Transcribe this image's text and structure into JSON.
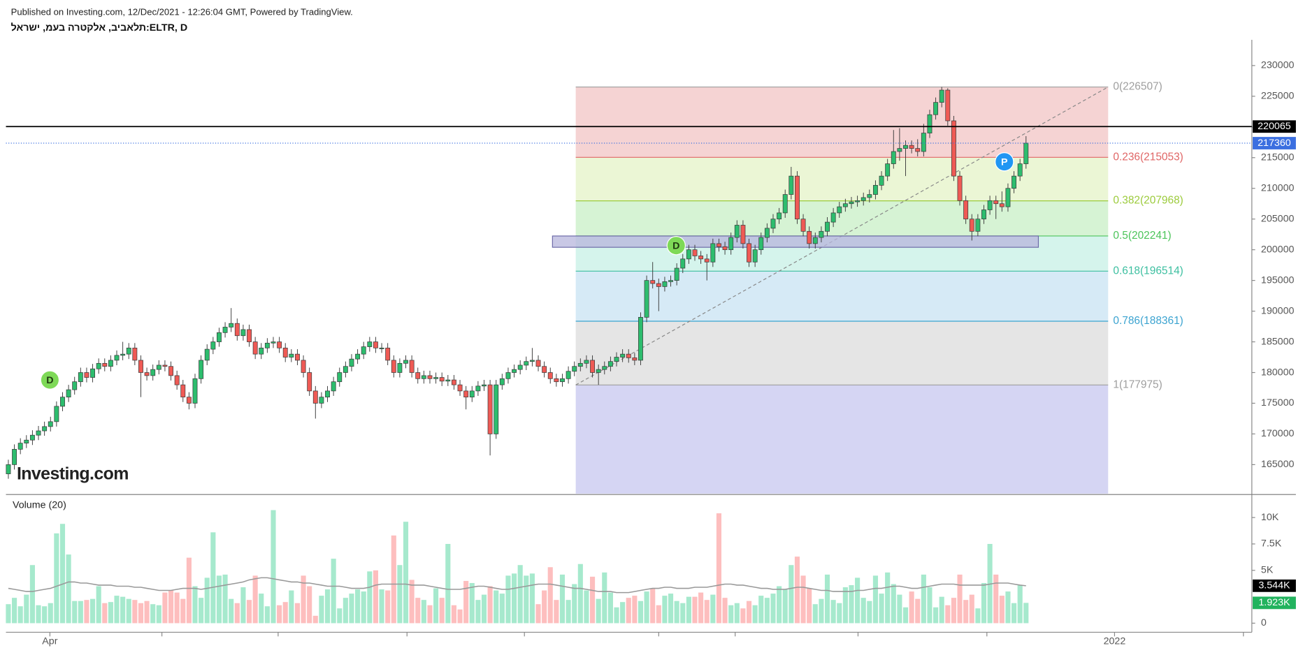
{
  "header": {
    "published": "Published on Investing.com, 12/Dec/2021 - 12:26:04 GMT, Powered by TradingView.",
    "title": "תלאביב, אלקטרה בעמ, ישראל:ELTR, D"
  },
  "chart_data": {
    "type": "candlestick",
    "xlim": [
      -0.4,
      206.5
    ],
    "xticks": [
      {
        "value": 6.9,
        "label": "Apr"
      },
      {
        "value": 183.7,
        "label": "2022"
      }
    ],
    "x_minor_ticks": [
      25.5,
      44.8,
      66.2,
      85.7,
      108,
      120.7,
      141.1,
      162.5,
      205.1
    ],
    "ylim": [
      160270,
      234190
    ],
    "yticks": [
      165000,
      170000,
      175000,
      180000,
      185000,
      190000,
      195000,
      200000,
      205000,
      210000,
      215000,
      220000,
      225000,
      230000
    ],
    "colors": {
      "up": "#2dbd6e",
      "down": "#ef5a55",
      "edge": "#3a3a3a"
    },
    "open": [
      163500,
      165000,
      167500,
      168500,
      169000,
      169800,
      170500,
      171200,
      172000,
      174500,
      176000,
      177200,
      178500,
      180000,
      179200,
      180600,
      181500,
      181000,
      182000,
      182800,
      183000,
      184000,
      182000,
      180000,
      179500,
      180500,
      181200,
      181000,
      179500,
      178000,
      176000,
      175000,
      179000,
      182000,
      183800,
      185000,
      186500,
      187400,
      188000,
      186000,
      187000,
      185000,
      183000,
      184000,
      184800,
      185000,
      184000,
      182500,
      183000,
      182000,
      180000,
      177000,
      175000,
      176000,
      177000,
      178500,
      180000,
      181000,
      182200,
      183000,
      184200,
      185000,
      184000,
      184000,
      182000,
      180000,
      181500,
      182000,
      180000,
      179000,
      179500,
      179000,
      179200,
      178600,
      178800,
      178000,
      177000,
      176000,
      177000,
      177800,
      178000,
      170000,
      178000,
      179000,
      180000,
      180500,
      181200,
      181800,
      182000,
      181000,
      180000,
      179000,
      178500,
      179000,
      180200,
      181000,
      181500,
      182000,
      180000,
      180500,
      181000,
      181800,
      182500,
      183000,
      182400,
      182000,
      189000,
      195000,
      194500,
      194000,
      194800,
      195000,
      197000,
      198500,
      200000,
      199000,
      198500,
      198000,
      201000,
      200500,
      200000,
      202000,
      204000,
      201000,
      198000,
      200000,
      202000,
      203500,
      205000,
      206000,
      209000,
      212000,
      205000,
      203000,
      201000,
      202000,
      203000,
      204500,
      206000,
      207000,
      207500,
      207800,
      208000,
      208500,
      209000,
      210500,
      212000,
      214000,
      216000,
      216500,
      217000,
      216500,
      216000,
      219000,
      222000,
      224000,
      226000,
      221000,
      212000,
      208000,
      205000,
      203000,
      205000,
      206500,
      208000,
      207500,
      207000,
      210000,
      212000,
      214000
    ],
    "high": [
      165800,
      168300,
      169300,
      169800,
      170600,
      171300,
      172000,
      172800,
      175300,
      176800,
      178000,
      179300,
      180800,
      180800,
      181400,
      182300,
      182300,
      182800,
      183600,
      185000,
      184800,
      184800,
      182800,
      180800,
      181300,
      182000,
      182000,
      181800,
      180300,
      178800,
      176800,
      179800,
      182800,
      184600,
      185800,
      187300,
      188200,
      190500,
      188800,
      187800,
      187800,
      185800,
      184800,
      185600,
      185800,
      185800,
      184800,
      183800,
      183800,
      182800,
      180800,
      177800,
      176800,
      177800,
      179300,
      180800,
      181800,
      183000,
      183800,
      185000,
      185800,
      185800,
      184800,
      184800,
      182800,
      182300,
      182800,
      182800,
      180800,
      180300,
      180300,
      180000,
      180000,
      179600,
      179600,
      178800,
      177800,
      177800,
      178600,
      178800,
      178800,
      178800,
      179800,
      180800,
      181300,
      182000,
      182600,
      184000,
      182800,
      181800,
      180800,
      179800,
      179800,
      181000,
      181800,
      182300,
      182800,
      182800,
      181300,
      181800,
      182600,
      183300,
      183800,
      183800,
      183200,
      189800,
      195800,
      198000,
      195300,
      195600,
      195800,
      197800,
      199300,
      200800,
      200800,
      199800,
      199300,
      201800,
      201800,
      201300,
      202800,
      204800,
      204800,
      201800,
      200800,
      202800,
      204300,
      205800,
      206800,
      209800,
      213500,
      212800,
      205800,
      203800,
      202800,
      203800,
      205300,
      206800,
      207800,
      208300,
      208600,
      208800,
      209300,
      209800,
      211300,
      212800,
      214800,
      219500,
      219800,
      217800,
      217800,
      218000,
      220500,
      222800,
      224800,
      226507,
      226300,
      221800,
      212800,
      208800,
      205800,
      205800,
      207300,
      208800,
      208800,
      209500,
      210800,
      212800,
      214800,
      218500
    ],
    "low": [
      162700,
      164200,
      166700,
      167700,
      168200,
      169000,
      169700,
      170400,
      171200,
      173700,
      175200,
      176400,
      177700,
      178400,
      178400,
      179800,
      180200,
      180200,
      181200,
      182000,
      182200,
      181200,
      176000,
      178700,
      178700,
      179700,
      180200,
      178700,
      177200,
      175200,
      174000,
      174200,
      178200,
      181200,
      183000,
      184200,
      185700,
      186600,
      185200,
      185200,
      184200,
      182200,
      182200,
      183200,
      184000,
      183200,
      181700,
      181700,
      181200,
      179200,
      176200,
      172500,
      174200,
      175200,
      176200,
      177700,
      179200,
      180200,
      181400,
      182200,
      183400,
      183200,
      183200,
      181200,
      179200,
      179200,
      180700,
      179200,
      178200,
      178200,
      178200,
      178200,
      177800,
      177800,
      177200,
      176200,
      174000,
      175200,
      176200,
      177000,
      166500,
      169200,
      177200,
      178200,
      179200,
      179700,
      180400,
      181000,
      180200,
      179200,
      178200,
      177700,
      177700,
      178200,
      179400,
      180200,
      180700,
      179200,
      178000,
      179700,
      180200,
      181000,
      181700,
      181600,
      181200,
      181200,
      188200,
      193700,
      190000,
      193200,
      194000,
      194200,
      196200,
      197700,
      198200,
      197700,
      195000,
      197200,
      199700,
      199200,
      199200,
      201200,
      200200,
      197200,
      197200,
      199200,
      201200,
      202700,
      204200,
      205200,
      208200,
      204200,
      202200,
      200200,
      200200,
      201200,
      202200,
      203700,
      205200,
      206200,
      206700,
      207000,
      207200,
      207700,
      208200,
      209700,
      211200,
      213200,
      214500,
      212000,
      215700,
      215200,
      215200,
      218200,
      221200,
      223200,
      220200,
      211200,
      207200,
      204200,
      201500,
      202200,
      204200,
      205700,
      205000,
      206200,
      206200,
      209200,
      211200,
      213200
    ],
    "close": [
      165000,
      167500,
      168500,
      169000,
      169800,
      170500,
      171200,
      172000,
      174500,
      176000,
      177200,
      178500,
      180000,
      179200,
      180600,
      181500,
      181000,
      182000,
      182800,
      183000,
      184000,
      182000,
      180000,
      179500,
      180500,
      181200,
      181000,
      179500,
      178000,
      176000,
      175000,
      179000,
      182000,
      183800,
      185000,
      186500,
      187400,
      188000,
      186000,
      187000,
      185000,
      183000,
      184000,
      184800,
      185000,
      184000,
      182500,
      183000,
      182000,
      180000,
      177000,
      175000,
      176000,
      177000,
      178500,
      180000,
      181000,
      182200,
      183000,
      184200,
      185000,
      184000,
      184000,
      182000,
      180000,
      181500,
      182000,
      180000,
      179000,
      179500,
      179000,
      179200,
      178600,
      178800,
      178000,
      177000,
      176000,
      177000,
      177800,
      178000,
      170000,
      178000,
      179000,
      180000,
      180500,
      181200,
      181800,
      182000,
      181000,
      180000,
      179000,
      178500,
      179000,
      180200,
      181000,
      181500,
      182000,
      180000,
      180500,
      181000,
      181800,
      182500,
      183000,
      182400,
      182000,
      189000,
      195000,
      194500,
      194000,
      194800,
      195000,
      197000,
      198500,
      200000,
      199000,
      198500,
      198000,
      201000,
      200500,
      200000,
      202000,
      204000,
      201000,
      198000,
      200000,
      202000,
      203500,
      205000,
      206000,
      209000,
      212000,
      205000,
      203000,
      201000,
      202000,
      203000,
      204500,
      206000,
      207000,
      207500,
      207800,
      208000,
      208500,
      209000,
      210500,
      212000,
      214000,
      216000,
      216500,
      217000,
      216500,
      216000,
      219000,
      222000,
      224000,
      226000,
      221000,
      212000,
      208000,
      205000,
      203000,
      205000,
      206500,
      208000,
      207500,
      207000,
      210000,
      212000,
      214000,
      217360
    ],
    "fibonacci": {
      "levels": [
        {
          "value": 226507,
          "label": "0(226507)",
          "color": "#9e9e9e",
          "fill": "#f5d3d3"
        },
        {
          "value": 215053,
          "label": "0.236(215053)",
          "color": "#e06666",
          "fill": "#ebf6d5"
        },
        {
          "value": 207968,
          "label": "0.382(207968)",
          "color": "#9ccb3c",
          "fill": "#d6f3d4"
        },
        {
          "value": 202241,
          "label": "0.5(202241)",
          "color": "#4cc45a",
          "fill": "#d5f4ec"
        },
        {
          "value": 196514,
          "label": "0.618(196514)",
          "color": "#3cbfa0",
          "fill": "#d6eaf6"
        },
        {
          "value": 188361,
          "label": "0.786(188361)",
          "color": "#3ba3d0",
          "fill": "#e5e5e5"
        },
        {
          "value": 177975,
          "label": "1(177975)",
          "color": "#9e9e9e",
          "fill": "#d5d5f3"
        }
      ],
      "trend_color": "#888888"
    },
    "range_box": {
      "values": [
        200400,
        202241
      ],
      "color": "#b7b5dc",
      "edge": "#6d6aa8"
    },
    "price_lines": [
      {
        "value": 220065,
        "label": "220065",
        "color": "#000000",
        "style": "solid"
      },
      {
        "value": 217360,
        "label": "217360",
        "color": "#3b6fe0",
        "style": "dotted"
      }
    ],
    "markers": [
      {
        "label": "D",
        "x": 6.9,
        "y": 178784,
        "color": "#7ed957",
        "text_color": "#1e3a10"
      },
      {
        "label": "D",
        "x": 110.9,
        "y": 200676,
        "color": "#7ed957",
        "text_color": "#1e3a10"
      },
      {
        "label": "P",
        "x": 165.4,
        "y": 214324,
        "color": "#2196f3",
        "text_color": "#ffffff"
      }
    ],
    "watermark": "Investing.com",
    "volume": {
      "title": "Volume (20)",
      "ylim": [
        -700,
        12100
      ],
      "yticks": [
        0,
        {
          "value": 5000,
          "label": "5K"
        },
        {
          "value": 7500,
          "label": "7.5K"
        },
        {
          "value": 10000,
          "label": "10K"
        }
      ],
      "colors": {
        "up": "#a6e9cd",
        "down": "#fdbebe"
      },
      "values": [
        1800,
        2400,
        1600,
        2700,
        5500,
        1700,
        1600,
        1900,
        8500,
        9400,
        6500,
        2100,
        2100,
        2200,
        2300,
        3500,
        1900,
        2000,
        2600,
        2500,
        2300,
        2200,
        1900,
        2100,
        1800,
        1700,
        2900,
        3100,
        2900,
        2300,
        6200,
        3500,
        2400,
        4300,
        8600,
        4500,
        4600,
        2300,
        1900,
        3400,
        2200,
        4500,
        2800,
        1600,
        10700,
        1700,
        2000,
        3100,
        1900,
        4500,
        3500,
        700,
        2600,
        3200,
        6100,
        1400,
        2400,
        2800,
        3200,
        3000,
        4900,
        5000,
        3200,
        3100,
        8300,
        5500,
        9600,
        4100,
        2400,
        2200,
        1700,
        3300,
        2400,
        7500,
        1700,
        1300,
        4000,
        3800,
        2200,
        2700,
        3500,
        3100,
        2800,
        4500,
        4700,
        5500,
        4500,
        4700,
        1800,
        3100,
        5300,
        2200,
        4600,
        2200,
        3700,
        5600,
        3100,
        4400,
        2300,
        4800,
        2900,
        1500,
        2000,
        2400,
        2600,
        2100,
        3000,
        3300,
        1700,
        2600,
        2800,
        2100,
        1900,
        2500,
        2500,
        2900,
        2200,
        2700,
        10400,
        2400,
        1700,
        1900,
        1400,
        2100,
        1700,
        2600,
        2400,
        2800,
        3500,
        3200,
        5500,
        6300,
        4500,
        3300,
        1800,
        2300,
        4600,
        2200,
        1900,
        3400,
        3600,
        4300,
        2400,
        2100,
        4500,
        2800,
        4800,
        3700,
        2700,
        1500,
        3000,
        2300,
        4600,
        3400,
        1500,
        2500,
        1700,
        2400,
        4600,
        2200,
        2700,
        1400,
        3800,
        7500,
        4600,
        2600,
        3000,
        1900,
        3600,
        1923
      ],
      "ma": {
        "color": "#999999",
        "values": [
          3300,
          3200,
          3100,
          3000,
          3000,
          3100,
          3200,
          3300,
          3500,
          3700,
          3900,
          3900,
          3800,
          3800,
          3700,
          3600,
          3600,
          3600,
          3500,
          3500,
          3500,
          3400,
          3400,
          3300,
          3200,
          3100,
          3100,
          3100,
          3200,
          3300,
          3300,
          3300,
          3200,
          3300,
          3400,
          3500,
          3600,
          3700,
          3800,
          3900,
          4100,
          4200,
          4300,
          4300,
          4200,
          4100,
          4000,
          3900,
          3900,
          3800,
          3800,
          3700,
          3600,
          3500,
          3500,
          3500,
          3400,
          3300,
          3300,
          3300,
          3400,
          3600,
          3700,
          3700,
          3700,
          3700,
          3700,
          3600,
          3600,
          3600,
          3500,
          3400,
          3300,
          3200,
          3200,
          3200,
          3300,
          3400,
          3500,
          3500,
          3400,
          3300,
          3200,
          3200,
          3300,
          3400,
          3500,
          3600,
          3700,
          3700,
          3700,
          3600,
          3500,
          3400,
          3300,
          3300,
          3200,
          3100,
          3000,
          3000,
          3000,
          2900,
          2900,
          2900,
          3000,
          3100,
          3200,
          3300,
          3300,
          3400,
          3400,
          3300,
          3300,
          3300,
          3400,
          3400,
          3400,
          3500,
          3600,
          3700,
          3700,
          3600,
          3600,
          3500,
          3400,
          3300,
          3300,
          3200,
          3200,
          3200,
          3300,
          3400,
          3400,
          3300,
          3200,
          3100,
          3100,
          3000,
          3000,
          3000,
          3000,
          3100,
          3100,
          3200,
          3300,
          3300,
          3400,
          3500,
          3500,
          3400,
          3300,
          3300,
          3400,
          3500,
          3600,
          3700,
          3700,
          3700,
          3600,
          3600,
          3600,
          3600,
          3600,
          3700,
          3800,
          3800,
          3800,
          3700,
          3600,
          3544
        ]
      },
      "labels": [
        {
          "value": 3544,
          "label": "3.544K",
          "color": "#000000"
        },
        {
          "value": 1923,
          "label": "1.923K",
          "color": "#22b35e"
        }
      ]
    }
  }
}
